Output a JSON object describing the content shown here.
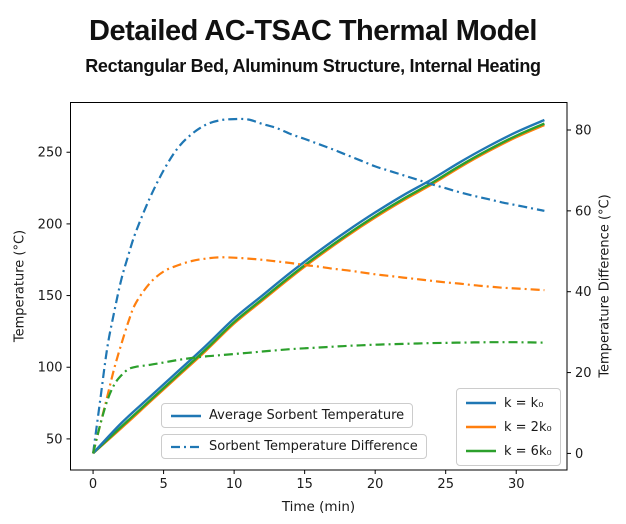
{
  "colors": {
    "blue": "#1f77b4",
    "orange": "#ff7f0e",
    "green": "#2ca02c",
    "spine": "#000000",
    "text": "#1a1a1a",
    "legend_border": "#cccccc"
  },
  "legend": {
    "solid_label": "Average Sorbent Temperature",
    "dash_label": "Sorbent Temperature Difference",
    "k_entries": [
      {
        "label": "k = k₀",
        "color": "#1f77b4"
      },
      {
        "label": "k = 2k₀",
        "color": "#ff7f0e"
      },
      {
        "label": "k = 6k₀",
        "color": "#2ca02c"
      }
    ]
  },
  "chart_data": {
    "type": "line",
    "title": "Detailed AC-TSAC Thermal Model",
    "subtitle": "Rectangular Bed, Aluminum Structure, Internal Heating",
    "xlabel": "Time (min)",
    "ylabel_left": "Temperature (°C)",
    "ylabel_right": "Temperature Difference (°C)",
    "xlim": [
      -1.6,
      33.6
    ],
    "ylim_left": [
      28.3,
      284.7
    ],
    "ylim_right": [
      -4.1,
      86.8
    ],
    "xticks": [
      0,
      5,
      10,
      15,
      20,
      25,
      30
    ],
    "yticks_left": [
      50,
      100,
      150,
      200,
      250
    ],
    "yticks_right": [
      0,
      20,
      40,
      60,
      80
    ],
    "grid": false,
    "series": [
      {
        "name": "Average Sorbent Temperature k = 2k₀",
        "axis": "left",
        "style": "solid",
        "color": "#ff7f0e",
        "x": [
          0,
          2,
          4,
          6,
          8,
          10,
          12,
          14,
          16,
          18,
          20,
          22,
          24,
          26,
          28,
          30,
          32
        ],
        "y": [
          40,
          57.5,
          75.5,
          93.5,
          111.5,
          130.5,
          146.5,
          162.5,
          177.5,
          191.5,
          204.5,
          216.5,
          227.5,
          239.5,
          250.5,
          260.5,
          269
        ]
      },
      {
        "name": "Average Sorbent Temperature k = 6k₀",
        "axis": "left",
        "style": "solid",
        "color": "#2ca02c",
        "x": [
          0,
          2,
          4,
          6,
          8,
          10,
          12,
          14,
          16,
          18,
          20,
          22,
          24,
          26,
          28,
          30,
          32
        ],
        "y": [
          40,
          58.5,
          76.5,
          94.5,
          112.5,
          131.5,
          147.5,
          163.5,
          178.5,
          192.5,
          205.5,
          217.5,
          228.5,
          240.5,
          251.5,
          261.5,
          270
        ]
      },
      {
        "name": "Average Sorbent Temperature k = k₀",
        "axis": "left",
        "style": "solid",
        "color": "#1f77b4",
        "x": [
          0,
          2,
          4,
          6,
          8,
          10,
          12,
          14,
          16,
          18,
          20,
          22,
          24,
          26,
          28,
          30,
          32
        ],
        "y": [
          40,
          61,
          79,
          97,
          115,
          134,
          150,
          166,
          181,
          195,
          208,
          220,
          231,
          243,
          254,
          264,
          272.5
        ]
      },
      {
        "name": "Sorbent Temperature Difference k = k₀",
        "axis": "right",
        "style": "dashdot",
        "color": "#1f77b4",
        "x": [
          0,
          0.5,
          1,
          1.5,
          2,
          2.5,
          3,
          4,
          5,
          6,
          7,
          8,
          9,
          10,
          11,
          12,
          13,
          14,
          15,
          16,
          17,
          18,
          19,
          20,
          21,
          22,
          23,
          24,
          25,
          26,
          27,
          28,
          29,
          30,
          31,
          32
        ],
        "y": [
          0,
          13,
          26,
          35,
          43,
          49,
          54.5,
          63,
          70,
          75.5,
          79,
          81.3,
          82.4,
          82.7,
          82.6,
          81.5,
          80.5,
          79,
          77.8,
          76.5,
          75.2,
          73.8,
          72.4,
          71,
          69.9,
          68.8,
          67.7,
          66.6,
          65.6,
          64.6,
          63.7,
          62.9,
          62.1,
          61.4,
          60.7,
          60
        ]
      },
      {
        "name": "Sorbent Temperature Difference k = 2k₀",
        "axis": "right",
        "style": "dashdot",
        "color": "#ff7f0e",
        "x": [
          0,
          0.5,
          1,
          1.5,
          2,
          2.5,
          3,
          4,
          5,
          6,
          7,
          8,
          9,
          10,
          11,
          12,
          13,
          14,
          15,
          16,
          17,
          18,
          19,
          20,
          21,
          22,
          23,
          24,
          25,
          26,
          27,
          28,
          29,
          30,
          31,
          32
        ],
        "y": [
          0,
          7,
          14,
          21,
          27,
          32.5,
          37,
          42,
          45,
          46.5,
          47.6,
          48.2,
          48.5,
          48.4,
          48.2,
          47.9,
          47.5,
          47.1,
          46.6,
          46.2,
          45.7,
          45.3,
          44.8,
          44.3,
          43.9,
          43.5,
          43.1,
          42.7,
          42.3,
          42,
          41.6,
          41.3,
          41,
          40.8,
          40.6,
          40.4
        ]
      },
      {
        "name": "Sorbent Temperature Difference k = 6k₀",
        "axis": "right",
        "style": "dashdot",
        "color": "#2ca02c",
        "x": [
          0,
          0.5,
          1,
          1.5,
          2,
          2.5,
          3,
          4,
          5,
          6,
          7,
          8,
          9,
          10,
          11,
          12,
          13,
          14,
          15,
          16,
          17,
          18,
          19,
          20,
          21,
          22,
          23,
          24,
          25,
          26,
          27,
          28,
          29,
          30,
          31,
          32
        ],
        "y": [
          0,
          7,
          13,
          17,
          19.3,
          20.8,
          21.4,
          21.9,
          22.5,
          23.1,
          23.6,
          24,
          24.3,
          24.6,
          24.9,
          25.2,
          25.5,
          25.8,
          26,
          26.2,
          26.4,
          26.6,
          26.75,
          26.9,
          27,
          27.1,
          27.2,
          27.3,
          27.35,
          27.4,
          27.45,
          27.5,
          27.5,
          27.5,
          27.45,
          27.4
        ]
      }
    ]
  }
}
